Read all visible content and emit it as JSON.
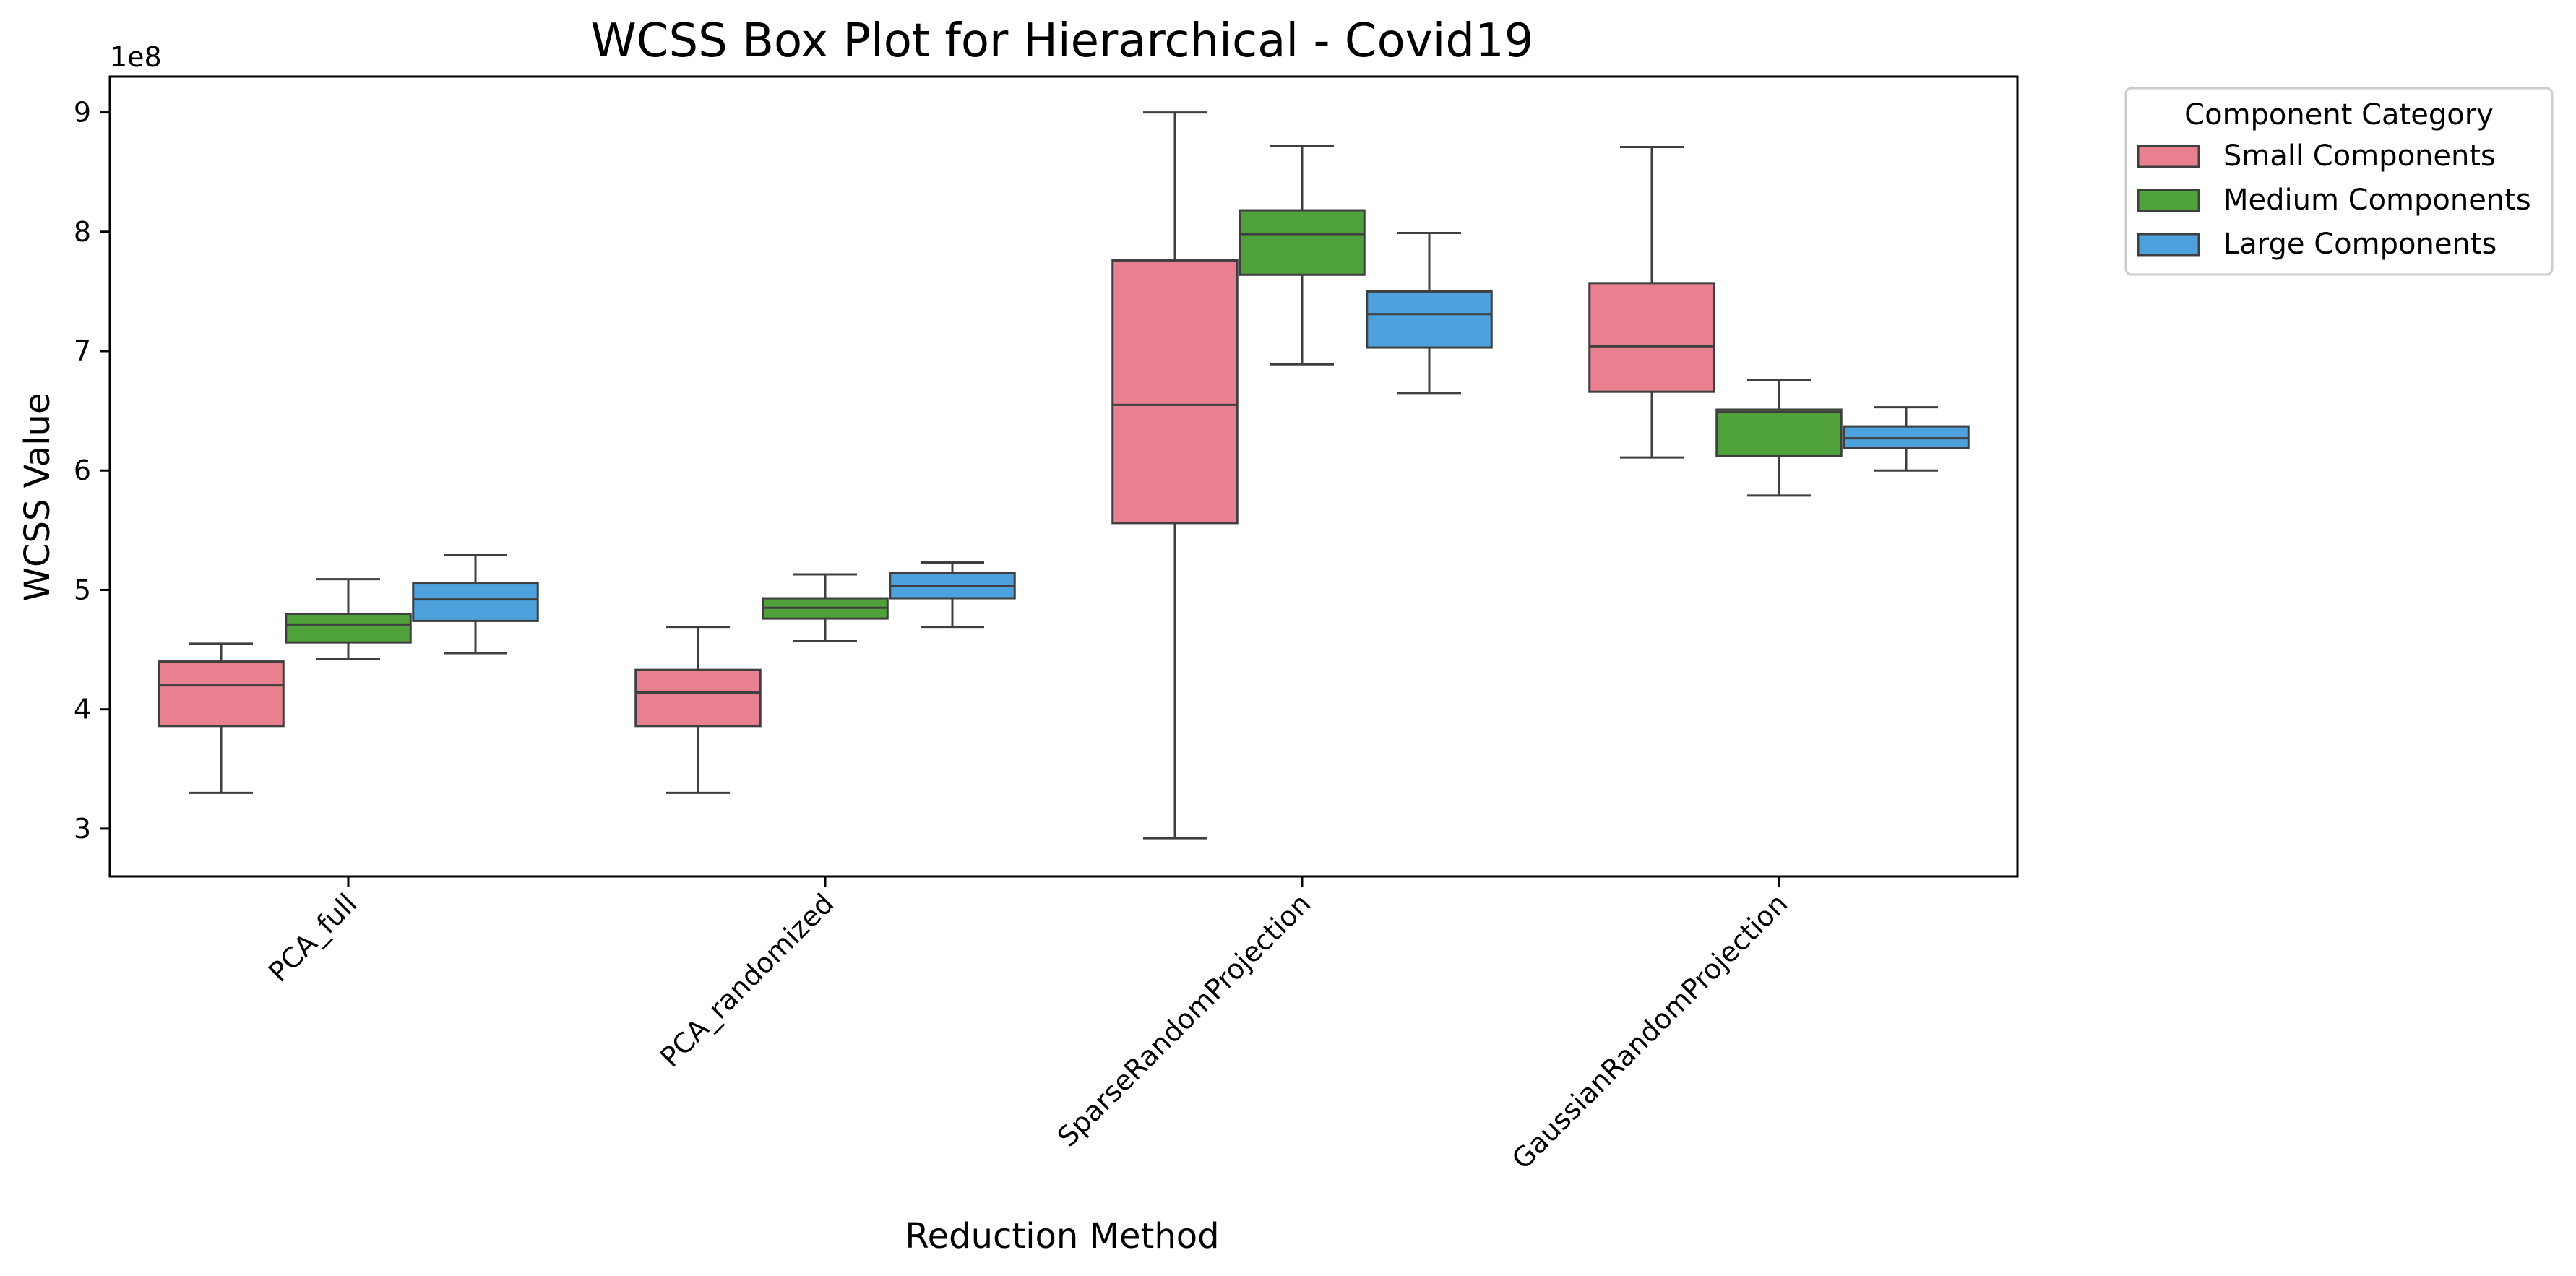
{
  "chart_data": {
    "type": "box",
    "title": "WCSS Box Plot for Hierarchical - Covid19",
    "xlabel": "Reduction Method",
    "ylabel": "WCSS Value",
    "y_offset_label": "1e8",
    "y_scale": 100000000,
    "ylim": [
      2.6,
      9.3
    ],
    "yticks": [
      3,
      4,
      5,
      6,
      7,
      8,
      9
    ],
    "ytick_labels": [
      "3",
      "4",
      "5",
      "6",
      "7",
      "8",
      "9"
    ],
    "categories": [
      "PCA_full",
      "PCA_randomized",
      "SparseRandomProjection",
      "GaussianRandomProjection"
    ],
    "legend": {
      "title": "Component Category",
      "position": "outside-top-right"
    },
    "series": [
      {
        "name": "Small Components",
        "color": "#e8808f",
        "boxes": [
          {
            "whislo": 3.3,
            "q1": 3.86,
            "med": 4.2,
            "q3": 4.4,
            "whishi": 4.55
          },
          {
            "whislo": 3.3,
            "q1": 3.86,
            "med": 4.14,
            "q3": 4.33,
            "whishi": 4.69
          },
          {
            "whislo": 2.92,
            "q1": 5.56,
            "med": 6.55,
            "q3": 7.76,
            "whishi": 9.0
          },
          {
            "whislo": 6.11,
            "q1": 6.66,
            "med": 7.04,
            "q3": 7.57,
            "whishi": 8.71
          }
        ]
      },
      {
        "name": "Medium Components",
        "color": "#4fa23a",
        "boxes": [
          {
            "whislo": 4.42,
            "q1": 4.56,
            "med": 4.71,
            "q3": 4.8,
            "whishi": 5.09
          },
          {
            "whislo": 4.57,
            "q1": 4.76,
            "med": 4.85,
            "q3": 4.93,
            "whishi": 5.13
          },
          {
            "whislo": 6.89,
            "q1": 7.64,
            "med": 7.98,
            "q3": 8.18,
            "whishi": 8.72
          },
          {
            "whislo": 5.79,
            "q1": 6.12,
            "med": 6.49,
            "q3": 6.51,
            "whishi": 6.76
          }
        ]
      },
      {
        "name": "Large Components",
        "color": "#4da1dc",
        "boxes": [
          {
            "whislo": 4.47,
            "q1": 4.74,
            "med": 4.92,
            "q3": 5.06,
            "whishi": 5.29
          },
          {
            "whislo": 4.69,
            "q1": 4.93,
            "med": 5.03,
            "q3": 5.14,
            "whishi": 5.23
          },
          {
            "whislo": 6.65,
            "q1": 7.03,
            "med": 7.31,
            "q3": 7.5,
            "whishi": 7.99
          },
          {
            "whislo": 6.0,
            "q1": 6.19,
            "med": 6.27,
            "q3": 6.37,
            "whishi": 6.53
          }
        ]
      }
    ]
  }
}
